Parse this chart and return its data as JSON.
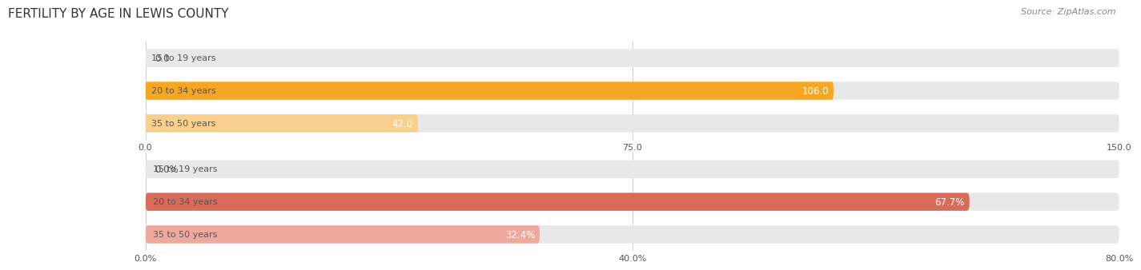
{
  "title": "FERTILITY BY AGE IN LEWIS COUNTY",
  "source": "Source: ZipAtlas.com",
  "label_inside_color": "#ffffff",
  "label_outside_color": "#555555",
  "title_fontsize": 11,
  "source_fontsize": 8,
  "label_fontsize": 8.5,
  "tick_fontsize": 8,
  "category_fontsize": 8,
  "figure_bg": "#ffffff",
  "top_chart": {
    "categories": [
      "15 to 19 years",
      "20 to 34 years",
      "35 to 50 years"
    ],
    "values": [
      0.0,
      106.0,
      42.0
    ],
    "xlim": [
      0,
      150
    ],
    "xticks": [
      0.0,
      75.0,
      150.0
    ],
    "xtick_labels": [
      "0.0",
      "75.0",
      "150.0"
    ],
    "bar_color_full": "#F5A623",
    "bar_color_light": "#F9D08B",
    "bar_height": 0.55,
    "bar_bg_color": "#e8e8e8"
  },
  "bottom_chart": {
    "categories": [
      "15 to 19 years",
      "20 to 34 years",
      "35 to 50 years"
    ],
    "values": [
      0.0,
      67.7,
      32.4
    ],
    "xlim": [
      0,
      80
    ],
    "xticks": [
      0.0,
      40.0,
      80.0
    ],
    "xtick_labels": [
      "0.0%",
      "40.0%",
      "80.0%"
    ],
    "bar_color_full": "#D96B5A",
    "bar_color_light": "#EFA89E",
    "bar_height": 0.55,
    "bar_bg_color": "#e8e8e8"
  }
}
